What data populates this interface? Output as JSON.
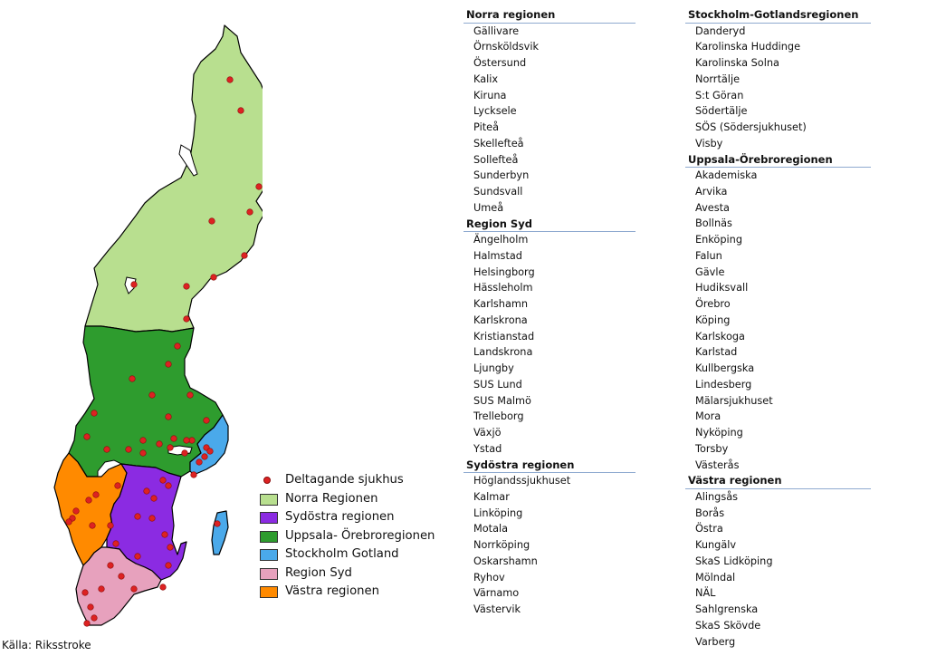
{
  "legend": {
    "items": [
      {
        "label": "Deltagande sjukhus",
        "kind": "dot",
        "color": "#d22222"
      },
      {
        "label": "Norra Regionen",
        "kind": "box",
        "color": "#b8df8f"
      },
      {
        "label": "Sydöstra regionen",
        "kind": "box",
        "color": "#8b2be2"
      },
      {
        "label": "Uppsala- Örebroregionen",
        "kind": "box",
        "color": "#2e9c2e"
      },
      {
        "label": "Stockholm Gotland",
        "kind": "box",
        "color": "#4aa9ea"
      },
      {
        "label": "Region Syd",
        "kind": "box",
        "color": "#e7a1bd"
      },
      {
        "label": "Västra regionen",
        "kind": "box",
        "color": "#ff8a00"
      }
    ]
  },
  "source": "Källa: Riksstroke",
  "lists": {
    "left": [
      {
        "header": "Norra regionen",
        "items": [
          "Gällivare",
          "Örnsköldsvik",
          "Östersund",
          "Kalix",
          "Kiruna",
          "Lycksele",
          "Piteå",
          "Skellefteå",
          "Sollefteå",
          "Sunderbyn",
          "Sundsvall",
          "Umeå"
        ]
      },
      {
        "header": "Region Syd",
        "items": [
          "Ängelholm",
          "Halmstad",
          "Helsingborg",
          "Hässleholm",
          "Karlshamn",
          "Karlskrona",
          "Kristianstad",
          "Landskrona",
          "Ljungby",
          "SUS Lund",
          "SUS Malmö",
          "Trelleborg",
          "Växjö",
          "Ystad"
        ]
      },
      {
        "header": "Sydöstra regionen",
        "items": [
          "Höglandssjukhuset",
          "Kalmar",
          "Linköping",
          "Motala",
          "Norrköping",
          "Oskarshamn",
          "Ryhov",
          "Värnamo",
          "Västervik"
        ]
      }
    ],
    "right": [
      {
        "header": "Stockholm-Gotlandsregionen",
        "items": [
          "Danderyd",
          "Karolinska Huddinge",
          "Karolinska Solna",
          "Norrtälje",
          "S:t Göran",
          "Södertälje",
          "SÖS (Södersjukhuset)",
          "Visby"
        ]
      },
      {
        "header": "Uppsala-Örebroregionen",
        "items": [
          "Akademiska",
          "Arvika",
          "Avesta",
          "Bollnäs",
          "Enköping",
          "Falun",
          "Gävle",
          "Hudiksvall",
          "Örebro",
          "Köping",
          "Karlskoga",
          "Karlstad",
          "Kullbergska",
          "Lindesberg",
          "Mälarsjukhuset",
          "Mora",
          "Nyköping",
          "Torsby",
          "Västerås"
        ]
      },
      {
        "header": "Västra regionen",
        "items": [
          "Alingsås",
          "Borås",
          "Östra",
          "Kungälv",
          "SkaS Lidköping",
          "Mölndal",
          "NÄL",
          "Sahlgrenska",
          "SkaS Skövde",
          "Varberg"
        ]
      }
    ]
  }
}
